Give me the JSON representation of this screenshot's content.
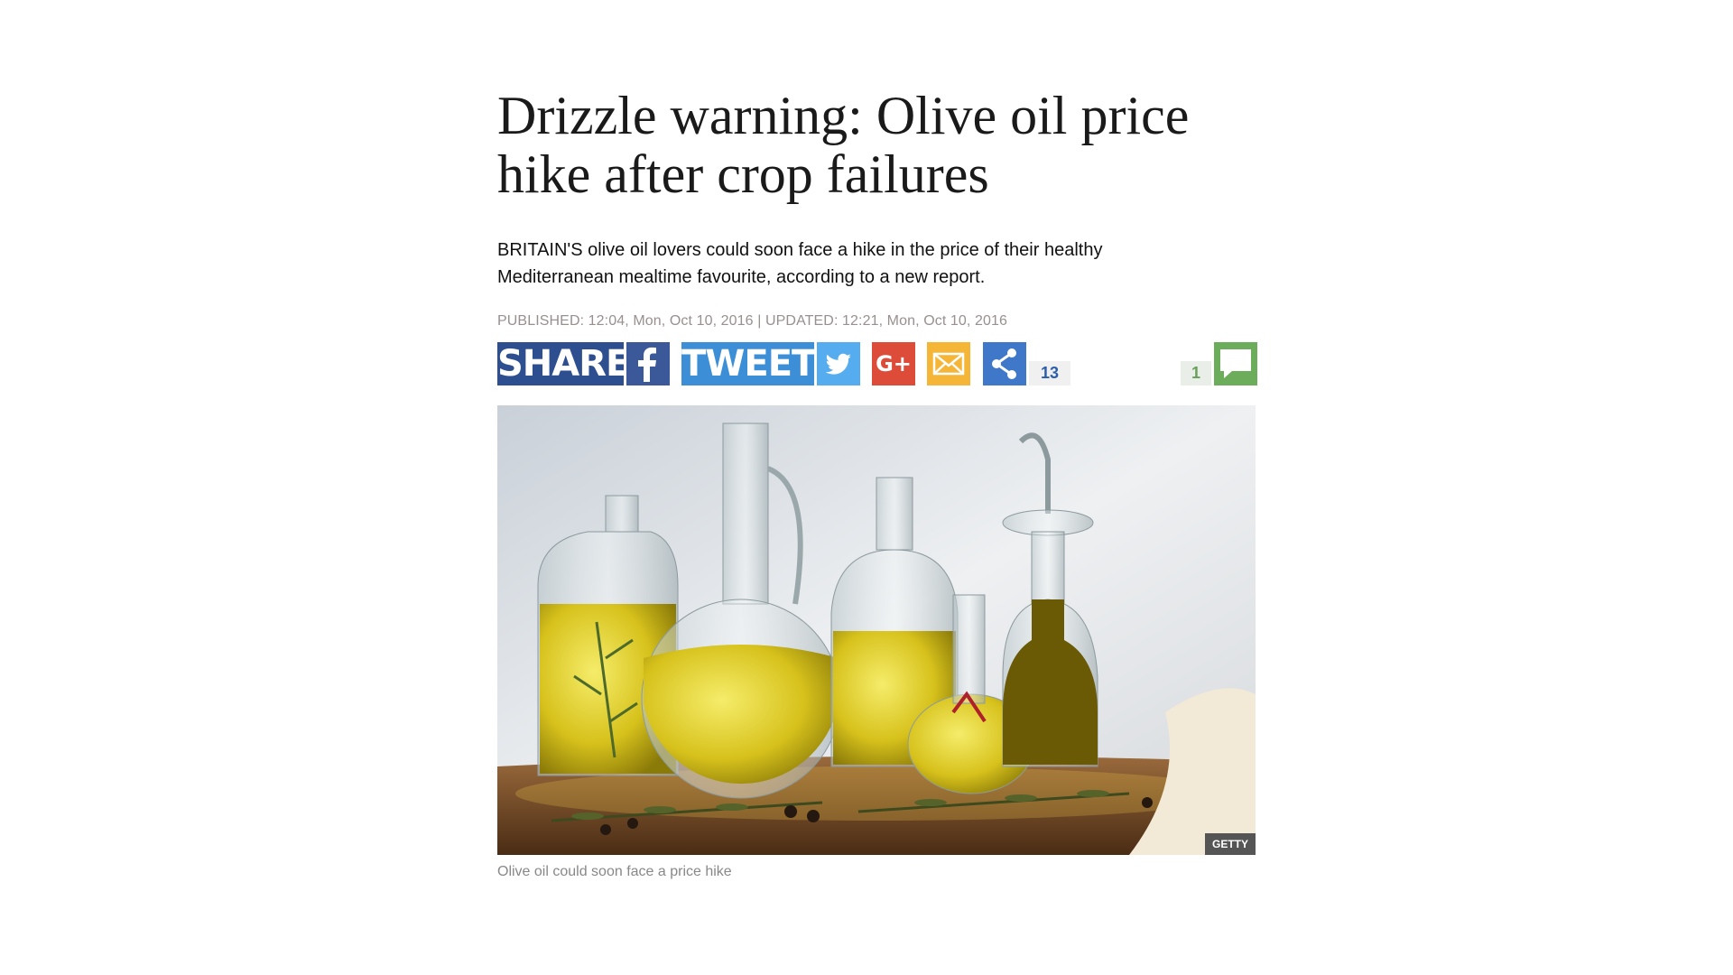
{
  "article": {
    "headline": "Drizzle warning: Olive oil price hike after crop failures",
    "standfirst": "BRITAIN'S olive oil lovers could soon face a hike in the price of their healthy Mediterranean mealtime favourite, according to a new report.",
    "dateline": "PUBLISHED: 12:04, Mon, Oct 10, 2016 | UPDATED: 12:21, Mon, Oct 10, 2016"
  },
  "share_bar": {
    "share_label": "SHARE",
    "tweet_label": "TWEET",
    "googleplus_label": "G+",
    "share_count": "13",
    "comment_count": "1",
    "icons": [
      "facebook-icon",
      "twitter-icon",
      "googleplus-icon",
      "email-icon",
      "share-icon",
      "comment-icon"
    ],
    "colors": {
      "share": "#2d4f90",
      "facebook": "#3b5998",
      "tweet": "#3c8fd6",
      "twitter": "#55acee",
      "googleplus": "#dd4b39",
      "email": "#f5b638",
      "share_generic": "#3f78c8",
      "comment": "#6cad5b"
    }
  },
  "figure": {
    "credit": "GETTY",
    "caption": "Olive oil could soon face a price hike"
  }
}
